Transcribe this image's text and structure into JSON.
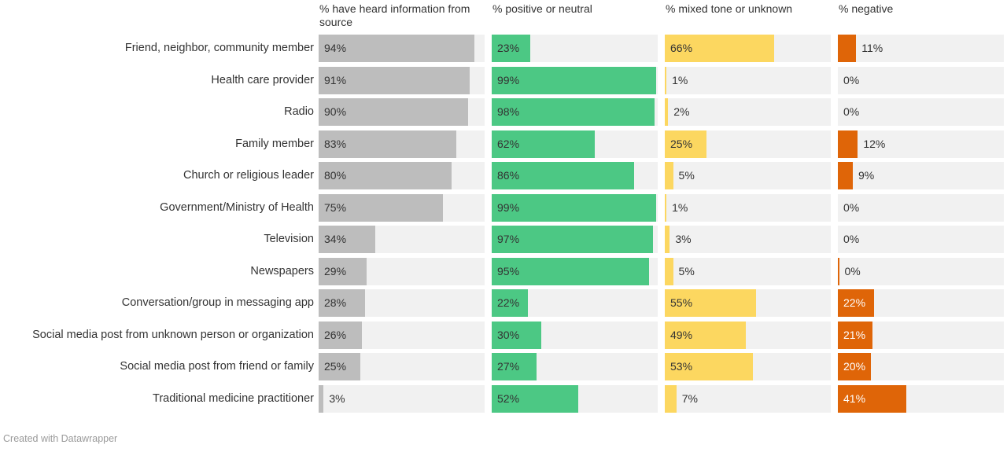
{
  "chart_data": {
    "type": "bar",
    "categories": [
      "Friend, neighbor, community member",
      "Health care provider",
      "Radio",
      "Family member",
      "Church or religious leader",
      "Government/Ministry of Health",
      "Television",
      "Newspapers",
      "Conversation/group in messaging app",
      "Social media post from unknown person or organization",
      "Social media post from friend or family",
      "Traditional medicine practitioner"
    ],
    "series": [
      {
        "name": "% have heard information from source",
        "color": "#bdbdbd",
        "values": [
          94,
          91,
          90,
          83,
          80,
          75,
          34,
          29,
          28,
          26,
          25,
          3
        ],
        "labels": [
          "94%",
          "91%",
          "90%",
          "83%",
          "80%",
          "75%",
          "34%",
          "29%",
          "28%",
          "26%",
          "25%",
          "3%"
        ]
      },
      {
        "name": "% positive or neutral",
        "color": "#4cc884",
        "values": [
          23,
          99,
          98,
          62,
          86,
          99,
          97,
          95,
          22,
          30,
          27,
          52
        ],
        "labels": [
          "23%",
          "99%",
          "98%",
          "62%",
          "86%",
          "99%",
          "97%",
          "95%",
          "22%",
          "30%",
          "27%",
          "52%"
        ]
      },
      {
        "name": "% mixed tone or unknown",
        "color": "#fcd760",
        "values": [
          66,
          1,
          2,
          25,
          5,
          1,
          3,
          5,
          55,
          49,
          53,
          7
        ],
        "labels": [
          "66%",
          "1%",
          "2%",
          "25%",
          "5%",
          "1%",
          "3%",
          "5%",
          "55%",
          "49%",
          "53%",
          "7%"
        ]
      },
      {
        "name": "% negative",
        "color": "#df6508",
        "values": [
          11,
          0,
          0,
          12,
          9,
          0,
          0,
          0,
          22,
          21,
          20,
          41
        ],
        "labels": [
          "11%",
          "0%",
          "0%",
          "12%",
          "9%",
          "0%",
          "0%",
          "0%",
          "22%",
          "21%",
          "20%",
          "41%"
        ]
      }
    ],
    "headers": [
      "% have heard information from source",
      "% positive or neutral",
      "% mixed tone or unknown",
      "% negative"
    ],
    "xlim": [
      0,
      100
    ],
    "grid": false,
    "legend": "none"
  },
  "footer": {
    "credit": "Created with Datawrapper"
  }
}
